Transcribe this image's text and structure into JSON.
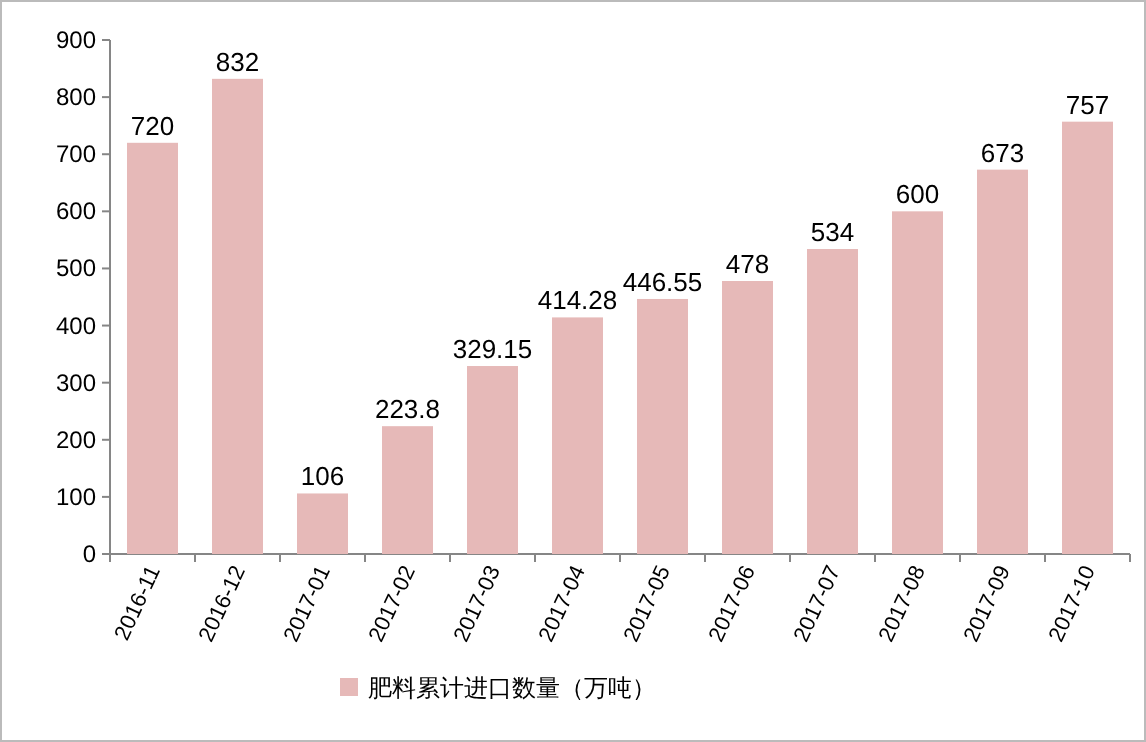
{
  "chart_data": {
    "type": "bar",
    "categories": [
      "2016-11",
      "2016-12",
      "2017-01",
      "2017-02",
      "2017-03",
      "2017-04",
      "2017-05",
      "2017-06",
      "2017-07",
      "2017-08",
      "2017-09",
      "2017-10"
    ],
    "series": [
      {
        "name": "肥料累计进口数量（万吨）",
        "color": "#e6b9b8",
        "values": [
          720,
          832,
          106,
          223.8,
          329.15,
          414.28,
          446.55,
          478,
          534,
          600,
          673,
          757
        ]
      }
    ],
    "ylim": [
      0,
      900
    ],
    "yticks": [
      0,
      100,
      200,
      300,
      400,
      500,
      600,
      700,
      800,
      900
    ],
    "data_labels": true,
    "legend": "bottom"
  }
}
